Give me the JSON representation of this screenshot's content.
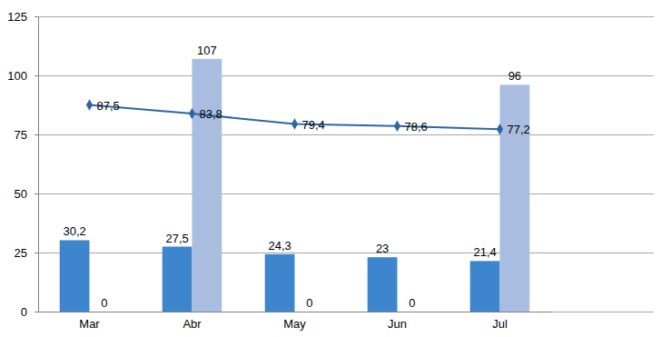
{
  "chart_data": {
    "type": "bar",
    "categories": [
      "Mar",
      "Abr",
      "May",
      "Jun",
      "Jul"
    ],
    "series": [
      {
        "type": "bar",
        "color": "#3d85cc",
        "values": [
          30.2,
          27.5,
          24.3,
          23,
          21.4
        ],
        "value_labels": [
          "30,2",
          "27,5",
          "24,3",
          "23",
          "21,4"
        ]
      },
      {
        "type": "bar",
        "color": "#a8bde0",
        "values": [
          0,
          107,
          0,
          0,
          96
        ]
      },
      {
        "type": "line",
        "color": "#2f65a6",
        "marker": "diamond",
        "values": [
          87.5,
          83.8,
          79.4,
          78.6,
          77.2
        ],
        "value_labels": [
          "87,5",
          "83,8",
          "79,4",
          "78,6",
          "77,2"
        ]
      }
    ],
    "ylim": [
      0,
      125
    ],
    "yticks": [
      0,
      25,
      50,
      75,
      100,
      125
    ],
    "grid": true,
    "data_labels": true
  }
}
